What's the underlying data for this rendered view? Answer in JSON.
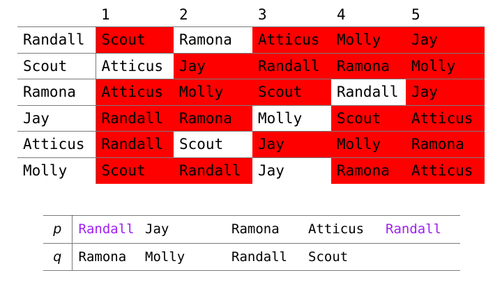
{
  "colors": {
    "highlight_red": "#ff0000",
    "special_purple": "#a020f0",
    "grid_line": "rgba(0,0,0,0.52)"
  },
  "main_table": {
    "column_headers": [
      "1",
      "2",
      "3",
      "4",
      "5"
    ],
    "rows": [
      {
        "header": "Randall",
        "cells": [
          {
            "text": "Scout",
            "highlight": true
          },
          {
            "text": "Ramona",
            "highlight": false
          },
          {
            "text": "Atticus",
            "highlight": true
          },
          {
            "text": "Molly",
            "highlight": true
          },
          {
            "text": "Jay",
            "highlight": true
          }
        ]
      },
      {
        "header": "Scout",
        "cells": [
          {
            "text": "Atticus",
            "highlight": false
          },
          {
            "text": "Jay",
            "highlight": true
          },
          {
            "text": "Randall",
            "highlight": true
          },
          {
            "text": "Ramona",
            "highlight": true
          },
          {
            "text": "Molly",
            "highlight": true
          }
        ]
      },
      {
        "header": "Ramona",
        "cells": [
          {
            "text": "Atticus",
            "highlight": true
          },
          {
            "text": "Molly",
            "highlight": true
          },
          {
            "text": "Scout",
            "highlight": true
          },
          {
            "text": "Randall",
            "highlight": false
          },
          {
            "text": "Jay",
            "highlight": true
          }
        ]
      },
      {
        "header": "Jay",
        "cells": [
          {
            "text": "Randall",
            "highlight": true
          },
          {
            "text": "Ramona",
            "highlight": true
          },
          {
            "text": "Molly",
            "highlight": false
          },
          {
            "text": "Scout",
            "highlight": true
          },
          {
            "text": "Atticus",
            "highlight": true
          }
        ]
      },
      {
        "header": "Atticus",
        "cells": [
          {
            "text": "Randall",
            "highlight": true
          },
          {
            "text": "Scout",
            "highlight": false
          },
          {
            "text": "Jay",
            "highlight": true
          },
          {
            "text": "Molly",
            "highlight": true
          },
          {
            "text": "Ramona",
            "highlight": true
          }
        ]
      },
      {
        "header": "Molly",
        "cells": [
          {
            "text": "Scout",
            "highlight": true
          },
          {
            "text": "Randall",
            "highlight": true
          },
          {
            "text": "Jay",
            "highlight": false
          },
          {
            "text": "Ramona",
            "highlight": true
          },
          {
            "text": "Atticus",
            "highlight": true
          }
        ]
      }
    ]
  },
  "sequence_table": {
    "rows": [
      {
        "label": "p",
        "cells": [
          {
            "text": "Randall",
            "special": true
          },
          {
            "text": "Jay",
            "special": false
          },
          {
            "text": "Ramona",
            "special": false
          },
          {
            "text": "Atticus",
            "special": false
          },
          {
            "text": "Randall",
            "special": true
          }
        ]
      },
      {
        "label": "q",
        "cells": [
          {
            "text": "Ramona",
            "special": false
          },
          {
            "text": "Molly",
            "special": false
          },
          {
            "text": "Randall",
            "special": false
          },
          {
            "text": "Scout",
            "special": false
          },
          {
            "text": "",
            "special": false
          }
        ]
      }
    ]
  },
  "chart_data": [
    {
      "type": "table",
      "title": "Preference matrix with rank columns 1-5",
      "columns": [
        "",
        "1",
        "2",
        "3",
        "4",
        "5"
      ],
      "rows": [
        [
          "Randall",
          "Scout",
          "Ramona",
          "Atticus",
          "Molly",
          "Jay"
        ],
        [
          "Scout",
          "Atticus",
          "Jay",
          "Randall",
          "Ramona",
          "Molly"
        ],
        [
          "Ramona",
          "Atticus",
          "Molly",
          "Scout",
          "Randall",
          "Jay"
        ],
        [
          "Jay",
          "Randall",
          "Ramona",
          "Molly",
          "Scout",
          "Atticus"
        ],
        [
          "Atticus",
          "Randall",
          "Scout",
          "Jay",
          "Molly",
          "Ramona"
        ],
        [
          "Molly",
          "Scout",
          "Randall",
          "Jay",
          "Ramona",
          "Atticus"
        ]
      ],
      "red_highlighted_cells_row_col": [
        [
          0,
          1
        ],
        [
          0,
          3
        ],
        [
          0,
          4
        ],
        [
          0,
          5
        ],
        [
          1,
          2
        ],
        [
          1,
          3
        ],
        [
          1,
          4
        ],
        [
          1,
          5
        ],
        [
          2,
          1
        ],
        [
          2,
          2
        ],
        [
          2,
          3
        ],
        [
          2,
          5
        ],
        [
          3,
          1
        ],
        [
          3,
          2
        ],
        [
          3,
          4
        ],
        [
          3,
          5
        ],
        [
          4,
          1
        ],
        [
          4,
          3
        ],
        [
          4,
          4
        ],
        [
          4,
          5
        ],
        [
          5,
          1
        ],
        [
          5,
          2
        ],
        [
          5,
          4
        ],
        [
          5,
          5
        ]
      ],
      "white_cells_row_col": [
        [
          0,
          2
        ],
        [
          1,
          1
        ],
        [
          2,
          4
        ],
        [
          3,
          3
        ],
        [
          4,
          2
        ],
        [
          5,
          3
        ]
      ]
    },
    {
      "type": "table",
      "title": "p/q sequences",
      "rows": [
        [
          "p",
          "Randall",
          "Jay",
          "Ramona",
          "Atticus",
          "Randall"
        ],
        [
          "q",
          "Ramona",
          "Molly",
          "Randall",
          "Scout",
          ""
        ]
      ],
      "purple_cells_row_col": [
        [
          0,
          1
        ],
        [
          0,
          5
        ]
      ]
    }
  ]
}
